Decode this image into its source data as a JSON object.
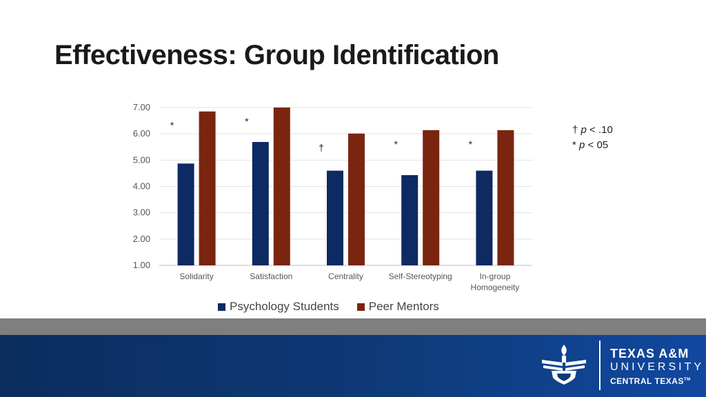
{
  "slide": {
    "title": "Effectiveness: Group Identification"
  },
  "significance_note": {
    "line1_symbol": "†",
    "line1_p": "p",
    "line1_text": "< .10",
    "line2_symbol": "*",
    "line2_p": "p",
    "line2_text": "< 05"
  },
  "chart_data": {
    "type": "bar",
    "categories": [
      "Solidarity",
      "Satisfaction",
      "Centrality",
      "Self-Stereotyping",
      "In-group Homogeneity"
    ],
    "series": [
      {
        "name": "Psychology Students",
        "color": "#0d2a63",
        "values": [
          4.87,
          5.69,
          4.6,
          4.43,
          4.6
        ]
      },
      {
        "name": "Peer Mentors",
        "color": "#7a2510",
        "values": [
          6.85,
          7.0,
          6.01,
          6.14,
          6.14
        ]
      }
    ],
    "annotations": [
      "*",
      "*",
      "†",
      "*",
      "*"
    ],
    "y_ticks": [
      "1.00",
      "2.00",
      "3.00",
      "4.00",
      "5.00",
      "6.00",
      "7.00"
    ],
    "ylim": [
      1,
      7
    ],
    "grid": true,
    "legend_position": "bottom",
    "title": "",
    "xlabel": "",
    "ylabel": ""
  },
  "footer": {
    "logo_line1": "TEXAS A&M",
    "logo_line2": "UNIVERSITY",
    "logo_line3": "CENTRAL TEXAS",
    "logo_mark": "TM",
    "emblem_icon": "university-shield-emblem-icon"
  }
}
